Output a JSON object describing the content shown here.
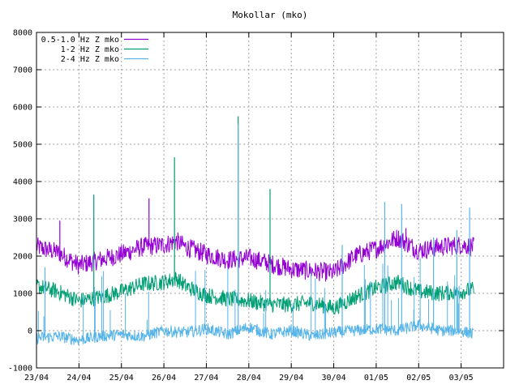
{
  "chart_data": {
    "type": "line",
    "title": "Mokollar (mko)",
    "xlabel": "",
    "ylabel": "",
    "ylim": [
      -1000,
      8000
    ],
    "yticks": [
      -1000,
      0,
      1000,
      2000,
      3000,
      4000,
      5000,
      6000,
      7000,
      8000
    ],
    "xlim_days": [
      0,
      11
    ],
    "xticks": [
      "23/04",
      "24/04",
      "25/04",
      "26/04",
      "27/04",
      "28/04",
      "29/04",
      "30/04",
      "01/05",
      "02/05",
      "03/05"
    ],
    "grid": true,
    "legend_position": "top-left",
    "series": [
      {
        "name": "0.5-1.0 Hz Z mko",
        "color": "#9400d3",
        "x": [
          0,
          0.5,
          1,
          1.5,
          2,
          2.5,
          3,
          3.3,
          3.5,
          4,
          4.5,
          5,
          5.5,
          6,
          6.5,
          7,
          7.5,
          8,
          8.5,
          9,
          9.5,
          10,
          10.3
        ],
        "y": [
          2250,
          2100,
          1750,
          1900,
          2050,
          2250,
          2300,
          2400,
          2250,
          2050,
          1900,
          1950,
          1800,
          1650,
          1600,
          1550,
          2000,
          2200,
          2500,
          2150,
          2250,
          2300,
          2250
        ],
        "spikes": [
          [
            0.55,
            2950
          ],
          [
            2.65,
            3550
          ],
          [
            8.7,
            2750
          ]
        ]
      },
      {
        "name": "1-2 Hz Z mko",
        "color": "#009e73",
        "x": [
          0,
          0.5,
          1,
          1.5,
          2,
          2.5,
          3,
          3.3,
          3.5,
          4,
          4.5,
          5,
          5.5,
          6,
          6.5,
          7,
          7.5,
          8,
          8.5,
          9,
          9.5,
          10,
          10.3
        ],
        "y": [
          1200,
          1050,
          800,
          900,
          1050,
          1250,
          1300,
          1400,
          1200,
          950,
          850,
          800,
          700,
          700,
          750,
          600,
          900,
          1150,
          1300,
          1050,
          1000,
          1050,
          1100
        ],
        "spikes": [
          [
            1.35,
            3650
          ],
          [
            3.25,
            4650
          ],
          [
            4.75,
            5750
          ],
          [
            5.5,
            3800
          ]
        ]
      },
      {
        "name": "2-4 Hz Z mko",
        "color": "#56b4e9",
        "x": [
          0,
          0.5,
          1,
          1.5,
          2,
          2.5,
          3,
          3.5,
          4,
          4.5,
          5,
          5.5,
          6,
          6.5,
          7,
          7.5,
          8,
          8.5,
          9,
          9.5,
          10,
          10.3
        ],
        "y": [
          -200,
          -150,
          -250,
          -150,
          -100,
          -150,
          0,
          -50,
          50,
          -100,
          100,
          -100,
          0,
          -150,
          -50,
          0,
          50,
          0,
          150,
          0,
          0,
          -100
        ],
        "spikes": [
          [
            0.2,
            1700
          ],
          [
            4.75,
            5550
          ],
          [
            7.2,
            2300
          ],
          [
            8.2,
            3450
          ],
          [
            8.6,
            3400
          ],
          [
            9.35,
            2500
          ],
          [
            9.9,
            2700
          ],
          [
            10.2,
            3300
          ]
        ]
      }
    ]
  }
}
